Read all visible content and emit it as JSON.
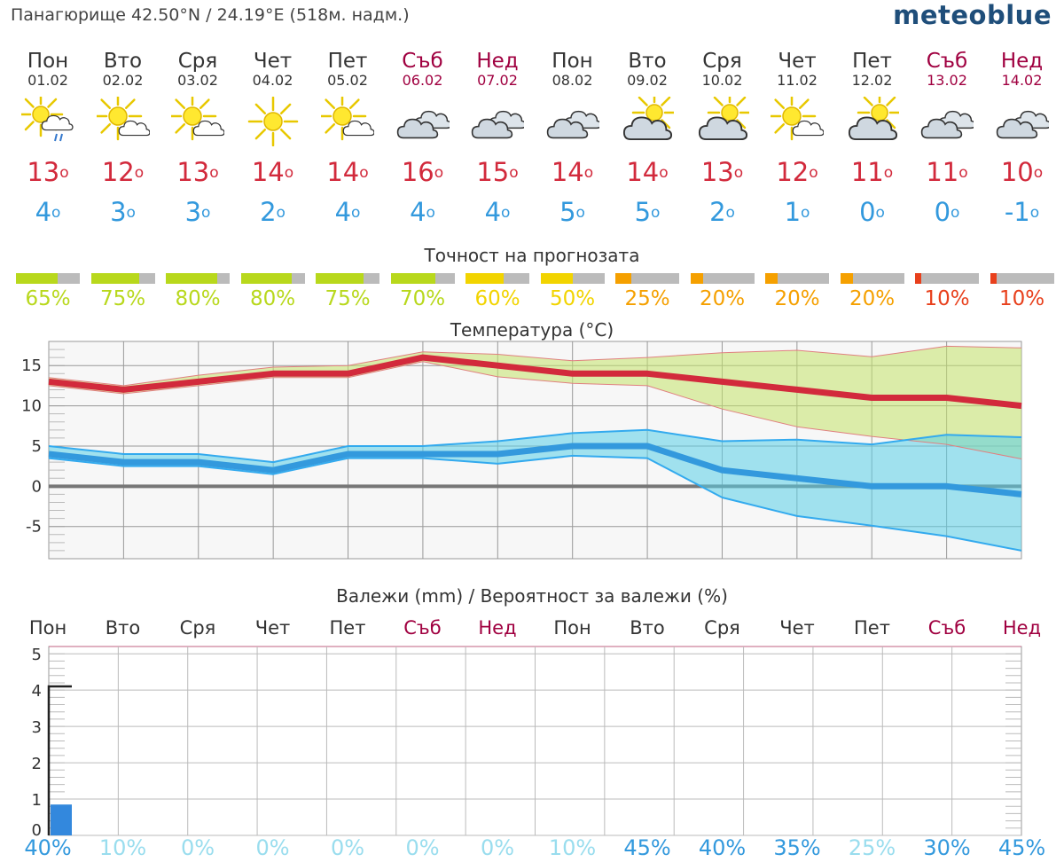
{
  "header": {
    "location": "Панагюрище  42.50°N / 24.19°E (518м. надм.)",
    "brand": "meteoblue"
  },
  "colors": {
    "tmax": "#d22a3c",
    "tmin": "#3399dd",
    "weekend": "#a00040",
    "acc_green": "#b8d81c",
    "acc_yellow": "#f2d400",
    "acc_orange": "#f5a000",
    "acc_red": "#e8401c",
    "precip": "#3388dd"
  },
  "days": [
    {
      "name": "Пон",
      "date": "01.02",
      "weekend": false,
      "icon": "sun-cloud-rain-icon",
      "tmax": "13",
      "tmin": "4"
    },
    {
      "name": "Вто",
      "date": "02.02",
      "weekend": false,
      "icon": "sun-cloud-icon",
      "tmax": "12",
      "tmin": "3"
    },
    {
      "name": "Сря",
      "date": "03.02",
      "weekend": false,
      "icon": "sun-cloud-icon",
      "tmax": "13",
      "tmin": "3"
    },
    {
      "name": "Чет",
      "date": "04.02",
      "weekend": false,
      "icon": "sun-icon",
      "tmax": "14",
      "tmin": "2"
    },
    {
      "name": "Пет",
      "date": "05.02",
      "weekend": false,
      "icon": "sun-cloud-icon",
      "tmax": "14",
      "tmin": "4"
    },
    {
      "name": "Съб",
      "date": "06.02",
      "weekend": true,
      "icon": "cloud-icon",
      "tmax": "16",
      "tmin": "4"
    },
    {
      "name": "Нед",
      "date": "07.02",
      "weekend": true,
      "icon": "cloud-icon",
      "tmax": "15",
      "tmin": "4"
    },
    {
      "name": "Пон",
      "date": "08.02",
      "weekend": false,
      "icon": "cloud-icon",
      "tmax": "14",
      "tmin": "5"
    },
    {
      "name": "Вто",
      "date": "09.02",
      "weekend": false,
      "icon": "cloud-sun-icon",
      "tmax": "14",
      "tmin": "5"
    },
    {
      "name": "Сря",
      "date": "10.02",
      "weekend": false,
      "icon": "cloud-sun-icon",
      "tmax": "13",
      "tmin": "2"
    },
    {
      "name": "Чет",
      "date": "11.02",
      "weekend": false,
      "icon": "sun-cloud-icon",
      "tmax": "12",
      "tmin": "1"
    },
    {
      "name": "Пет",
      "date": "12.02",
      "weekend": false,
      "icon": "cloud-sun-icon",
      "tmax": "11",
      "tmin": "0"
    },
    {
      "name": "Съб",
      "date": "13.02",
      "weekend": true,
      "icon": "cloud-icon",
      "tmax": "11",
      "tmin": "0"
    },
    {
      "name": "Нед",
      "date": "14.02",
      "weekend": true,
      "icon": "cloud-icon",
      "tmax": "10",
      "tmin": "-1"
    }
  ],
  "temp_unit_mark": "o",
  "accuracy": {
    "title": "Точност на прогнозата",
    "values": [
      {
        "label": "65%",
        "fraction": 0.65,
        "color": "#b8d81c"
      },
      {
        "label": "75%",
        "fraction": 0.75,
        "color": "#b8d81c"
      },
      {
        "label": "80%",
        "fraction": 0.8,
        "color": "#b8d81c"
      },
      {
        "label": "80%",
        "fraction": 0.8,
        "color": "#b8d81c"
      },
      {
        "label": "75%",
        "fraction": 0.75,
        "color": "#b8d81c"
      },
      {
        "label": "70%",
        "fraction": 0.7,
        "color": "#b8d81c"
      },
      {
        "label": "60%",
        "fraction": 0.6,
        "color": "#f2d400"
      },
      {
        "label": "50%",
        "fraction": 0.5,
        "color": "#f2d400"
      },
      {
        "label": "25%",
        "fraction": 0.25,
        "color": "#f5a000"
      },
      {
        "label": "20%",
        "fraction": 0.2,
        "color": "#f5a000"
      },
      {
        "label": "20%",
        "fraction": 0.2,
        "color": "#f5a000"
      },
      {
        "label": "20%",
        "fraction": 0.2,
        "color": "#f5a000"
      },
      {
        "label": "10%",
        "fraction": 0.1,
        "color": "#e8401c"
      },
      {
        "label": "10%",
        "fraction": 0.1,
        "color": "#e8401c"
      }
    ]
  },
  "precip_section": {
    "title": "Валежи (mm) / Вероятност за валежи (%)",
    "probabilities": [
      {
        "label": "40%",
        "color": "#3399dd"
      },
      {
        "label": "10%",
        "color": "#99ddee"
      },
      {
        "label": "0%",
        "color": "#99ddee"
      },
      {
        "label": "0%",
        "color": "#99ddee"
      },
      {
        "label": "0%",
        "color": "#99ddee"
      },
      {
        "label": "0%",
        "color": "#99ddee"
      },
      {
        "label": "0%",
        "color": "#99ddee"
      },
      {
        "label": "10%",
        "color": "#99ddee"
      },
      {
        "label": "45%",
        "color": "#3399dd"
      },
      {
        "label": "40%",
        "color": "#3399dd"
      },
      {
        "label": "35%",
        "color": "#3399dd"
      },
      {
        "label": "25%",
        "color": "#99ddee"
      },
      {
        "label": "30%",
        "color": "#3399dd"
      },
      {
        "label": "45%",
        "color": "#3399dd"
      }
    ]
  },
  "chart_data": [
    {
      "type": "line",
      "title": "Температура (°C)",
      "x": [
        "01.02",
        "02.02",
        "03.02",
        "04.02",
        "05.02",
        "06.02",
        "07.02",
        "08.02",
        "09.02",
        "10.02",
        "11.02",
        "12.02",
        "13.02",
        "14.02"
      ],
      "ylim": [
        -9,
        18
      ],
      "yticks": [
        -5,
        0,
        5,
        10,
        15
      ],
      "grid": true,
      "series": [
        {
          "role": "tmax",
          "values": [
            13,
            12,
            13,
            14,
            14,
            16,
            15,
            14,
            14,
            13,
            12,
            11,
            11,
            10
          ],
          "color": "#d22a3c"
        },
        {
          "role": "tmax_upper",
          "values": [
            13.5,
            12.5,
            13.8,
            14.8,
            15,
            16.7,
            16.4,
            15.6,
            16,
            16.6,
            16.9,
            16.1,
            17.4,
            17.2
          ]
        },
        {
          "role": "tmax_lower",
          "values": [
            12.5,
            11.5,
            12.5,
            13.5,
            13.5,
            15.5,
            13.6,
            12.8,
            12.5,
            9.6,
            7.4,
            6.2,
            5.2,
            3.4
          ]
        },
        {
          "role": "tmin",
          "values": [
            4,
            3,
            3,
            2,
            4,
            4,
            4,
            5,
            5,
            2,
            1,
            0,
            0,
            -1
          ],
          "color": "#3399dd"
        },
        {
          "role": "tmin_upper",
          "values": [
            5,
            4,
            4,
            3,
            5,
            5,
            5.6,
            6.6,
            7,
            5.6,
            5.8,
            5.2,
            6.4,
            6.1
          ]
        },
        {
          "role": "tmin_lower",
          "values": [
            3.5,
            2.5,
            2.5,
            1.5,
            3.5,
            3.5,
            2.8,
            3.8,
            3.5,
            -1.4,
            -3.7,
            -4.9,
            -6.2,
            -8
          ]
        }
      ]
    },
    {
      "type": "bar",
      "title": "Валежи (mm) / Вероятност за валежи (%)",
      "categories": [
        "Пон",
        "Вто",
        "Сря",
        "Чет",
        "Пет",
        "Съб",
        "Нед",
        "Пон",
        "Вто",
        "Сря",
        "Чет",
        "Пет",
        "Съб",
        "Нед"
      ],
      "ylim": [
        0,
        5.2
      ],
      "yticks": [
        0,
        1,
        2,
        3,
        4,
        5
      ],
      "grid": true,
      "values": [
        0.85,
        0,
        0,
        0,
        0,
        0,
        0,
        0,
        0,
        0,
        0,
        0,
        0,
        0
      ],
      "max_marker": [
        4.1,
        0,
        0,
        0,
        0,
        0,
        0,
        0,
        0,
        0,
        0,
        0,
        0,
        0
      ],
      "color": "#3388dd"
    }
  ]
}
